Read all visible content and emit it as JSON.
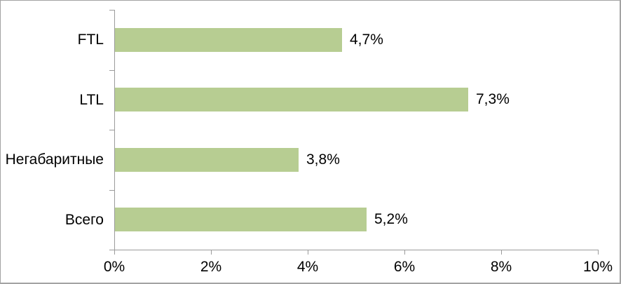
{
  "chart_data": {
    "type": "bar",
    "orientation": "horizontal",
    "title": "",
    "categories": [
      "FTL",
      "LTL",
      "Негабаритные",
      "Всего"
    ],
    "values": [
      4.7,
      7.3,
      3.8,
      5.2
    ],
    "value_labels": [
      "4,7%",
      "7,3%",
      "3,8%",
      "5,2%"
    ],
    "xlim": [
      0,
      10
    ],
    "x_tick_values": [
      0,
      2,
      4,
      6,
      8,
      10
    ],
    "x_tick_labels": [
      "0%",
      "2%",
      "4%",
      "6%",
      "8%",
      "10%"
    ],
    "grid": false,
    "legend": "none",
    "colors": {
      "bar": "#b7cd92",
      "axis": "#9b9b9b",
      "text": "#000000",
      "frame_border": "#a3a3a3",
      "background": "#ffffff"
    }
  }
}
